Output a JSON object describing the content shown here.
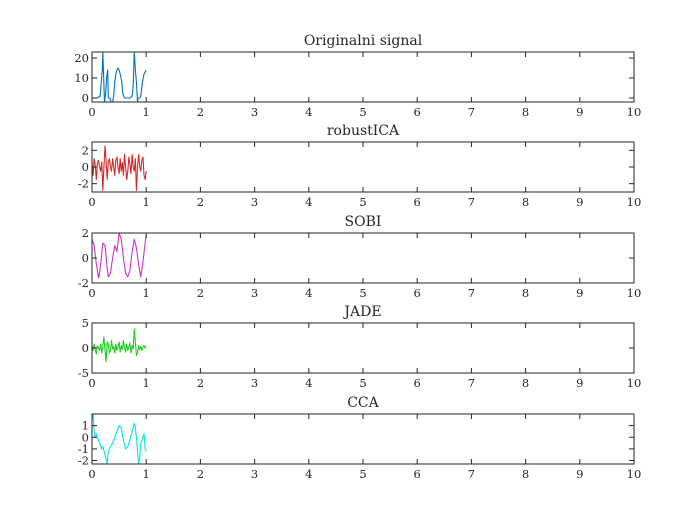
{
  "chart_data": [
    {
      "type": "line",
      "title": "Originalni signal",
      "xlim": [
        0,
        10
      ],
      "ylim": [
        -2,
        23
      ],
      "xticks": [
        0,
        1,
        2,
        3,
        4,
        5,
        6,
        7,
        8,
        9,
        10
      ],
      "yticks": [
        0,
        10,
        20
      ],
      "grid": false,
      "series": [
        {
          "color": "#0072bd",
          "x": [
            0.0,
            0.08,
            0.1,
            0.15,
            0.19,
            0.2,
            0.23,
            0.25,
            0.27,
            0.29,
            0.3,
            0.33,
            0.35,
            0.38,
            0.4,
            0.42,
            0.44,
            0.46,
            0.48,
            0.5,
            0.52,
            0.55,
            0.57,
            0.6,
            0.65,
            0.7,
            0.74,
            0.76,
            0.78,
            0.8,
            0.82,
            0.84,
            0.85,
            0.88,
            0.9,
            0.93,
            0.96,
            1.0
          ],
          "y": [
            0,
            0,
            0,
            1,
            14,
            23,
            -2,
            2,
            10,
            14,
            0,
            0,
            -2,
            -2,
            1,
            8,
            12,
            14,
            15,
            14,
            12,
            8,
            2,
            0,
            0,
            0,
            1,
            6,
            23,
            14,
            8,
            -2,
            0,
            0,
            1,
            8,
            12,
            14
          ]
        }
      ]
    },
    {
      "type": "line",
      "title": "robustICA",
      "xlim": [
        0,
        10
      ],
      "ylim": [
        -3,
        3
      ],
      "xticks": [
        0,
        1,
        2,
        3,
        4,
        5,
        6,
        7,
        8,
        9,
        10
      ],
      "yticks": [
        -2,
        0,
        2
      ],
      "grid": false,
      "series": [
        {
          "color": "#d62728",
          "x": [
            0.0,
            0.02,
            0.04,
            0.06,
            0.08,
            0.1,
            0.12,
            0.14,
            0.16,
            0.18,
            0.2,
            0.22,
            0.24,
            0.26,
            0.28,
            0.3,
            0.32,
            0.34,
            0.36,
            0.38,
            0.4,
            0.42,
            0.44,
            0.46,
            0.48,
            0.5,
            0.52,
            0.54,
            0.56,
            0.58,
            0.6,
            0.62,
            0.64,
            0.66,
            0.68,
            0.7,
            0.72,
            0.74,
            0.76,
            0.78,
            0.8,
            0.82,
            0.84,
            0.86,
            0.88,
            0.9,
            0.92,
            0.94,
            0.96,
            0.98,
            1.0
          ],
          "y": [
            0.5,
            -1.0,
            1.0,
            0.2,
            -1.5,
            0.5,
            0.8,
            0.0,
            -0.5,
            0.6,
            -2.8,
            0.0,
            2.5,
            0.8,
            -1.5,
            0.5,
            1.0,
            0.0,
            -0.5,
            1.0,
            0.0,
            -1.0,
            0.8,
            1.2,
            0.0,
            -0.8,
            1.0,
            -0.5,
            0.5,
            -1.0,
            1.5,
            0.0,
            -1.5,
            -0.5,
            1.2,
            0.3,
            -0.8,
            1.5,
            0.0,
            -0.5,
            1.0,
            -2.8,
            0.0,
            1.5,
            0.0,
            -0.5,
            0.8,
            1.2,
            -1.0,
            -1.5,
            -0.5
          ]
        }
      ]
    },
    {
      "type": "line",
      "title": "SOBI",
      "xlim": [
        0,
        10
      ],
      "ylim": [
        -2,
        2
      ],
      "xticks": [
        0,
        1,
        2,
        3,
        4,
        5,
        6,
        7,
        8,
        9,
        10
      ],
      "yticks": [
        -2,
        0,
        2
      ],
      "grid": false,
      "series": [
        {
          "color": "#cc33cc",
          "x": [
            0.0,
            0.04,
            0.08,
            0.1,
            0.12,
            0.14,
            0.16,
            0.2,
            0.24,
            0.28,
            0.3,
            0.34,
            0.38,
            0.42,
            0.46,
            0.5,
            0.54,
            0.58,
            0.62,
            0.66,
            0.7,
            0.74,
            0.78,
            0.82,
            0.86,
            0.9,
            0.94,
            0.98,
            1.0
          ],
          "y": [
            1.5,
            1.0,
            -0.5,
            -1.0,
            -1.6,
            -1.2,
            -0.5,
            1.2,
            1.0,
            -0.8,
            -1.5,
            -1.2,
            0.0,
            1.0,
            0.5,
            2.0,
            1.5,
            0.0,
            -1.2,
            -1.5,
            -1.0,
            0.5,
            1.5,
            0.8,
            -0.5,
            -1.5,
            -0.3,
            1.2,
            1.8
          ]
        }
      ]
    },
    {
      "type": "line",
      "title": "JADE",
      "xlim": [
        0,
        10
      ],
      "ylim": [
        -5,
        5
      ],
      "xticks": [
        0,
        1,
        2,
        3,
        4,
        5,
        6,
        7,
        8,
        9,
        10
      ],
      "yticks": [
        -5,
        0,
        5
      ],
      "grid": false,
      "series": [
        {
          "color": "#22cc22",
          "x": [
            0.0,
            0.02,
            0.04,
            0.06,
            0.08,
            0.1,
            0.12,
            0.14,
            0.16,
            0.18,
            0.2,
            0.22,
            0.24,
            0.26,
            0.28,
            0.3,
            0.32,
            0.34,
            0.36,
            0.38,
            0.4,
            0.42,
            0.44,
            0.46,
            0.48,
            0.5,
            0.52,
            0.54,
            0.56,
            0.58,
            0.6,
            0.62,
            0.64,
            0.66,
            0.68,
            0.7,
            0.72,
            0.74,
            0.76,
            0.78,
            0.8,
            0.82,
            0.84,
            0.86,
            0.88,
            0.9,
            0.92,
            0.94,
            0.96,
            0.98,
            1.0
          ],
          "y": [
            0.5,
            -0.5,
            0.8,
            -0.3,
            -1.2,
            0.5,
            0.0,
            -0.5,
            0.8,
            -1.0,
            0.5,
            2.2,
            -0.5,
            -2.8,
            1.2,
            0.8,
            -1.0,
            -0.5,
            1.5,
            -0.2,
            0.3,
            -1.0,
            0.8,
            -0.5,
            0.3,
            1.2,
            -0.8,
            0.5,
            -0.3,
            1.5,
            0.0,
            -0.8,
            0.8,
            -0.5,
            0.3,
            1.0,
            -1.0,
            0.5,
            -0.2,
            3.8,
            1.2,
            -1.5,
            -1.0,
            0.5,
            -0.3,
            0.3,
            -0.5,
            0.2,
            0.5,
            0.0,
            0.3
          ]
        }
      ]
    },
    {
      "type": "line",
      "title": "CCA",
      "xlim": [
        0,
        10
      ],
      "ylim": [
        -2.3,
        2
      ],
      "xticks": [
        0,
        1,
        2,
        3,
        4,
        5,
        6,
        7,
        8,
        9,
        10
      ],
      "yticks": [
        -2,
        -1,
        0,
        1
      ],
      "grid": false,
      "series": [
        {
          "color": "#00e5ee",
          "x": [
            0.0,
            0.02,
            0.04,
            0.06,
            0.08,
            0.1,
            0.14,
            0.18,
            0.2,
            0.24,
            0.28,
            0.3,
            0.34,
            0.38,
            0.42,
            0.46,
            0.5,
            0.54,
            0.58,
            0.62,
            0.66,
            0.7,
            0.74,
            0.78,
            0.8,
            0.82,
            0.84,
            0.86,
            0.88,
            0.9,
            0.92,
            0.94,
            0.96,
            0.98,
            1.0
          ],
          "y": [
            1.5,
            2.0,
            0.5,
            0.0,
            0.3,
            0.0,
            -0.5,
            -1.0,
            -0.8,
            -1.5,
            -2.3,
            -1.2,
            -0.8,
            -0.5,
            0.0,
            0.5,
            1.0,
            0.8,
            -0.3,
            -1.0,
            -0.8,
            -0.2,
            0.5,
            1.2,
            0.8,
            0.0,
            -1.2,
            -2.3,
            -1.8,
            -0.5,
            -0.3,
            0.0,
            0.3,
            -1.0,
            -1.2
          ]
        }
      ]
    }
  ]
}
